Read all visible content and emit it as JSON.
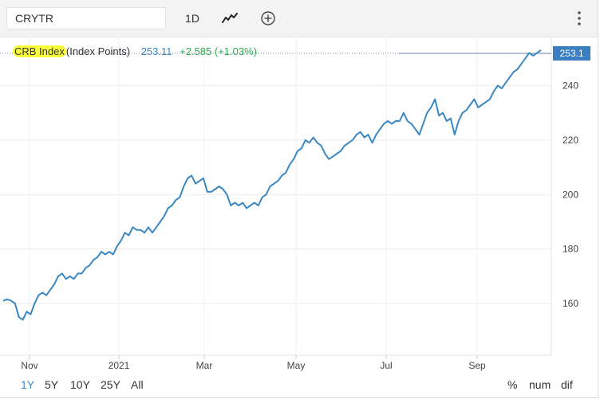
{
  "toolbar": {
    "symbol_value": "CRYTR",
    "interval_label": "1D",
    "chart_type_icon": "line-chart-icon",
    "add_icon": "add-circle-icon",
    "more_icon": "vertical-dots-icon"
  },
  "legend": {
    "name": "CRB Index",
    "unit": "(Index Points)",
    "value": "253.11",
    "change": "+2.585 (+1.03%)"
  },
  "last_value_badge": "253.1",
  "range_buttons": [
    "1Y",
    "5Y",
    "10Y",
    "25Y",
    "All"
  ],
  "active_range": "1Y",
  "mode_buttons": [
    "%",
    "num",
    "dif"
  ],
  "colors": {
    "line": "#3a87c2",
    "change_positive": "#34a853",
    "badge": "#3a7fc2",
    "highlight": "#fbff3a"
  },
  "chart_data": {
    "type": "line",
    "title": "",
    "xlabel": "",
    "ylabel": "",
    "x_tick_labels": [
      "Nov",
      "2021",
      "Mar",
      "May",
      "Jul",
      "Sep"
    ],
    "y_tick_labels": [
      "160",
      "180",
      "200",
      "220",
      "240"
    ],
    "ylim": [
      141,
      258
    ],
    "grid": true,
    "legend_placement": "top-left",
    "series": [
      {
        "name": "CRB Index",
        "values": [
          161,
          161.5,
          161,
          160,
          155,
          154,
          157,
          156,
          160,
          163,
          164,
          163,
          165,
          167,
          170,
          171,
          169,
          170,
          169,
          171,
          171,
          173,
          174,
          176,
          177,
          179,
          178,
          179,
          178,
          181,
          183,
          186,
          185,
          188,
          187,
          187,
          186,
          188,
          186,
          188,
          190,
          192,
          195,
          196,
          198,
          199,
          203,
          206,
          207,
          204,
          205,
          206,
          201,
          201,
          202,
          203,
          202,
          200,
          196,
          197,
          196,
          197,
          195,
          196,
          197,
          196,
          199,
          200,
          203,
          204,
          205,
          207,
          208,
          211,
          213,
          216,
          217,
          220,
          219,
          221,
          219,
          218,
          215,
          213,
          214,
          215,
          216,
          218,
          219,
          220,
          222,
          223,
          221,
          222,
          219,
          222,
          224,
          226,
          227,
          226,
          227,
          227,
          230,
          227,
          226,
          224,
          222,
          226,
          230,
          232,
          235,
          229,
          230,
          227,
          228,
          222,
          227,
          230,
          231,
          233,
          235,
          232,
          233,
          234,
          235,
          238,
          240,
          239,
          241,
          243,
          245,
          246,
          248,
          250,
          252,
          251,
          252,
          253.1
        ]
      }
    ]
  }
}
